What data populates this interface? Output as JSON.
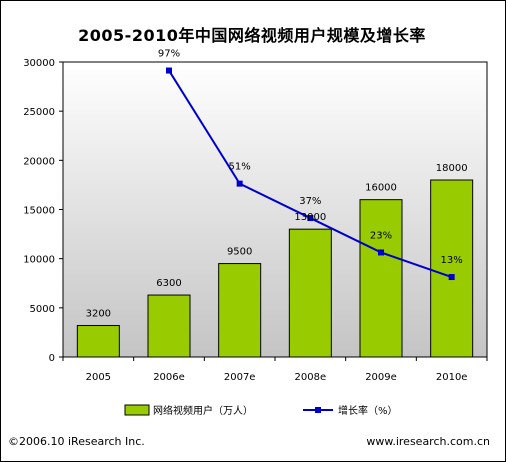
{
  "chart_data": {
    "type": "bar",
    "title": "2005-2010年中国网络视频用户规模及增长率",
    "categories": [
      "2005",
      "2006e",
      "2007e",
      "2008e",
      "2009e",
      "2010e"
    ],
    "series": [
      {
        "name": "网络视频用户（万人）",
        "type": "bar",
        "values": [
          3200,
          6300,
          9500,
          13000,
          16000,
          18000
        ],
        "labels": [
          "3200",
          "6300",
          "9500",
          "13000",
          "16000",
          "18000"
        ],
        "color": "#99cc00"
      },
      {
        "name": "增长率（%）",
        "type": "line",
        "x": [
          "2006e",
          "2007e",
          "2008e",
          "2009e",
          "2010e"
        ],
        "values": [
          97,
          51,
          37,
          23,
          13
        ],
        "labels": [
          "97%",
          "51%",
          "37%",
          "23%",
          "13%"
        ],
        "color": "#0000cc"
      }
    ],
    "yticks": [
      "0",
      "5000",
      "10000",
      "15000",
      "20000",
      "25000",
      "30000"
    ],
    "ylim": [
      0,
      30000
    ],
    "grid": false,
    "legend": "bottom"
  },
  "footer": {
    "left": "©2006.10 iResearch Inc.",
    "right": "www.iresearch.com.cn"
  }
}
